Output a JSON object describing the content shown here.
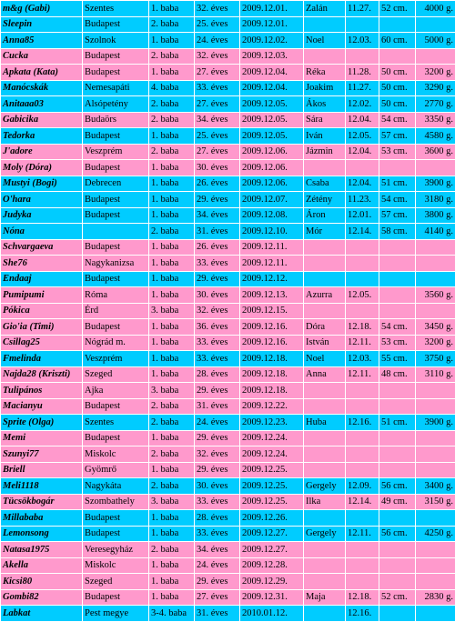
{
  "colors": {
    "blue": "#00ccff",
    "pink": "#ff99cc"
  },
  "rows": [
    {
      "c": "blue",
      "cells": [
        "m&g (Gabi)",
        "Szentes",
        "1. baba",
        "32. éves",
        "2009.12.01.",
        "Zalán",
        "11.27.",
        "52 cm.",
        "4000 g."
      ]
    },
    {
      "c": "blue",
      "cells": [
        "Sleepin",
        "Budapest",
        "2. baba",
        "25. éves",
        "2009.12.01.",
        "",
        "",
        "",
        ""
      ]
    },
    {
      "c": "blue",
      "cells": [
        "Anna85",
        "Szolnok",
        "1. baba",
        "24. éves",
        "2009.12.02.",
        "Noel",
        "12.03.",
        "60 cm.",
        "5000 g."
      ]
    },
    {
      "c": "pink",
      "cells": [
        "Cucka",
        "Budapest",
        "2. baba",
        "32. éves",
        "2009.12.03.",
        "",
        "",
        "",
        ""
      ]
    },
    {
      "c": "pink",
      "cells": [
        "Apkata (Kata)",
        "Budapest",
        "1. baba",
        "27. éves",
        "2009.12.04.",
        "Réka",
        "11.28.",
        "50 cm.",
        "3200 g."
      ]
    },
    {
      "c": "blue",
      "cells": [
        "Manócskák",
        "Nemesapáti",
        "4. baba",
        "33. éves",
        "2009.12.04.",
        "Joakim",
        "11.27.",
        "50 cm.",
        "3290 g."
      ]
    },
    {
      "c": "blue",
      "cells": [
        "Anitaaa03",
        "Alsópetény",
        "2. baba",
        "27. éves",
        "2009.12.05.",
        "Ákos",
        "12.02.",
        "50 cm.",
        "2770 g."
      ]
    },
    {
      "c": "pink",
      "cells": [
        "Gabicika",
        "Budaörs",
        "2. baba",
        "34. éves",
        "2009.12.05.",
        "Sára",
        "12.04.",
        "54 cm.",
        "3350 g."
      ]
    },
    {
      "c": "blue",
      "cells": [
        "Tedorka",
        "Budapest",
        "1. baba",
        "25. éves",
        "2009.12.05.",
        "Iván",
        "12.05.",
        "57 cm.",
        "4580 g."
      ]
    },
    {
      "c": "pink",
      "cells": [
        "J'adore",
        "Veszprém",
        "2. baba",
        "27. éves",
        "2009.12.06.",
        "Jázmin",
        "12.04.",
        "53 cm.",
        "3600 g."
      ]
    },
    {
      "c": "pink",
      "cells": [
        "Moly (Dóra)",
        "Budapest",
        "1. baba",
        "30. éves",
        "2009.12.06.",
        "",
        "",
        "",
        ""
      ]
    },
    {
      "c": "blue",
      "cells": [
        "Mustyi (Bogi)",
        "Debrecen",
        "1. baba",
        "26. éves",
        "2009.12.06.",
        "Csaba",
        "12.04.",
        "51 cm.",
        "3900 g."
      ]
    },
    {
      "c": "blue",
      "cells": [
        "O'hara",
        "Budapest",
        "1. baba",
        "29. éves",
        "2009.12.07.",
        "Zétény",
        "11.23.",
        "54 cm.",
        "3180 g."
      ]
    },
    {
      "c": "blue",
      "cells": [
        "Judyka",
        "Budapest",
        "1. baba",
        "34. éves",
        "2009.12.08.",
        "Áron",
        "12.01.",
        "57 cm.",
        "3800 g."
      ]
    },
    {
      "c": "blue",
      "cells": [
        "Nóna",
        "",
        "2. baba",
        "31. éves",
        "2009.12.10.",
        "Mór",
        "12.14.",
        "58 cm.",
        "4140 g."
      ]
    },
    {
      "c": "pink",
      "cells": [
        "Schvargaeva",
        "Budapest",
        "1. baba",
        "26. éves",
        "2009.12.11.",
        "",
        "",
        "",
        ""
      ]
    },
    {
      "c": "pink",
      "cells": [
        "She76",
        "Nagykanizsa",
        "1. baba",
        "33. éves",
        "2009.12.11.",
        "",
        "",
        "",
        ""
      ]
    },
    {
      "c": "blue",
      "cells": [
        "Endaaj",
        "Budapest",
        "1. baba",
        "29. éves",
        "2009.12.12.",
        "",
        "",
        "",
        ""
      ]
    },
    {
      "c": "pink",
      "cells": [
        "Pumipumi",
        "Róma",
        "1. baba",
        "30. éves",
        "2009.12.13.",
        "Azurra",
        "12.05.",
        "",
        "3560 g."
      ]
    },
    {
      "c": "pink",
      "cells": [
        "Pókica",
        "Érd",
        "3. baba",
        "32. éves",
        "2009.12.15.",
        "",
        "",
        "",
        ""
      ]
    },
    {
      "c": "pink",
      "cells": [
        "Gio'ia (Timi)",
        "Budapest",
        "1. baba",
        "36. éves",
        "2009.12.16.",
        "Dóra",
        "12.18.",
        "54 cm.",
        "3450 g."
      ]
    },
    {
      "c": "pink",
      "cells": [
        "Csillag25",
        "Nógrád m.",
        "1. baba",
        "33. éves",
        "2009.12.16.",
        "István",
        "12.11.",
        "53 cm.",
        "3200 g."
      ]
    },
    {
      "c": "blue",
      "cells": [
        "Fmelinda",
        "Veszprém",
        "1. baba",
        "33. éves",
        "2009.12.18.",
        "Noel",
        "12.03.",
        "55 cm.",
        "3750 g."
      ]
    },
    {
      "c": "pink",
      "cells": [
        "Najda28 (Kriszti)",
        "Szeged",
        "1. baba",
        "28. éves",
        "2009.12.18.",
        "Anna",
        "12.11.",
        "48 cm.",
        "3110 g."
      ]
    },
    {
      "c": "pink",
      "cells": [
        "Tulipános",
        "Ajka",
        "3. baba",
        "29. éves",
        "2009.12.18.",
        "",
        "",
        "",
        ""
      ]
    },
    {
      "c": "pink",
      "cells": [
        "Macianyu",
        "Budapest",
        "2. baba",
        "31. éves",
        "2009.12.22.",
        "",
        "",
        "",
        ""
      ]
    },
    {
      "c": "blue",
      "cells": [
        "Sprite (Olga)",
        "Szentes",
        "2. baba",
        "24. éves",
        "2009.12.23.",
        "Huba",
        "12.16.",
        "51 cm.",
        "3900 g."
      ]
    },
    {
      "c": "pink",
      "cells": [
        "Memi",
        "Budapest",
        "1. baba",
        "29. éves",
        "2009.12.24.",
        "",
        "",
        "",
        ""
      ]
    },
    {
      "c": "pink",
      "cells": [
        "Szunyi77",
        "Miskolc",
        "2. baba",
        "32. éves",
        "2009.12.24.",
        "",
        "",
        "",
        ""
      ]
    },
    {
      "c": "pink",
      "cells": [
        "Briell",
        "Gyömrő",
        "1. baba",
        "29. éves",
        "2009.12.25.",
        "",
        "",
        "",
        ""
      ]
    },
    {
      "c": "blue",
      "cells": [
        "Meli1118",
        "Nagykáta",
        "2. baba",
        "30. éves",
        "2009.12.25.",
        "Gergely",
        "12.09.",
        "56 cm.",
        "3400 g."
      ]
    },
    {
      "c": "pink",
      "cells": [
        "Tücsökbogár",
        "Szombathely",
        "3. baba",
        "33. éves",
        "2009.12.25.",
        "Ilka",
        "12.14.",
        "49 cm.",
        "3150 g."
      ]
    },
    {
      "c": "blue",
      "cells": [
        "Millababa",
        "Budapest",
        "1. baba",
        "28. éves",
        "2009.12.26.",
        "",
        "",
        "",
        ""
      ]
    },
    {
      "c": "blue",
      "cells": [
        "Lemonsong",
        "Budapest",
        "1. baba",
        "33. éves",
        "2009.12.27.",
        "Gergely",
        "12.11.",
        "56 cm.",
        "4250 g."
      ]
    },
    {
      "c": "pink",
      "cells": [
        "Natasa1975",
        "Veresegyház",
        "2. baba",
        "34. éves",
        "2009.12.27.",
        "",
        "",
        "",
        ""
      ]
    },
    {
      "c": "pink",
      "cells": [
        "Akella",
        "Miskolc",
        "1. baba",
        "24. éves",
        "2009.12.28.",
        "",
        "",
        "",
        ""
      ]
    },
    {
      "c": "pink",
      "cells": [
        "Kicsi80",
        "Szeged",
        "1. baba",
        "29. éves",
        "2009.12.29.",
        "",
        "",
        "",
        ""
      ]
    },
    {
      "c": "pink",
      "cells": [
        "Gombi82",
        "Budapest",
        "1. baba",
        "27. éves",
        "2009.12.31.",
        "Maja",
        "12.18.",
        "52 cm.",
        "2830 g."
      ]
    },
    {
      "c": "blue",
      "cells": [
        "Labkat",
        "Pest megye",
        "3-4. baba",
        "31. éves",
        "2010.01.12.",
        "",
        "12.16.",
        "",
        ""
      ]
    }
  ]
}
